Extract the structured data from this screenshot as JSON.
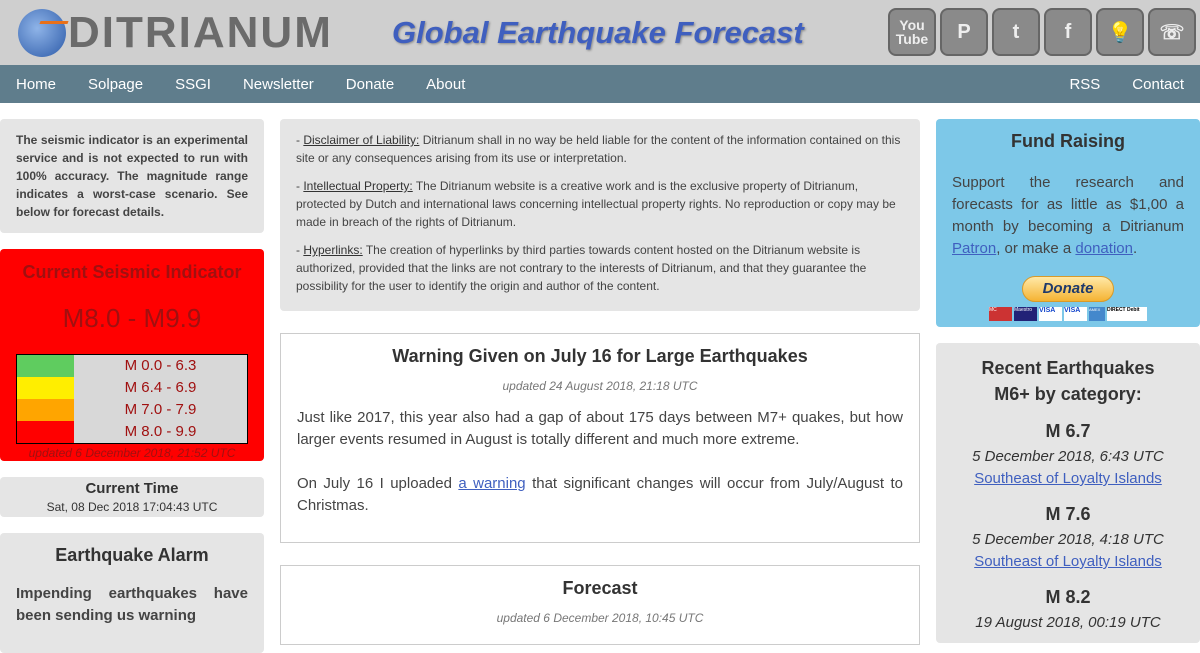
{
  "header": {
    "logo": "DITRIANUM",
    "title": "Global Earthquake Forecast",
    "social": [
      {
        "icon": "youtube-icon",
        "text": "You Tube"
      },
      {
        "icon": "patreon-icon",
        "text": "P"
      },
      {
        "icon": "twitter-icon",
        "text": "t"
      },
      {
        "icon": "facebook-icon",
        "text": "f"
      },
      {
        "icon": "lightbulb-icon",
        "text": "💡"
      },
      {
        "icon": "satellite-icon",
        "text": "☏"
      }
    ]
  },
  "nav": {
    "left": [
      "Home",
      "Solpage",
      "SSGI",
      "Newsletter",
      "Donate",
      "About"
    ],
    "right": [
      "RSS",
      "Contact"
    ]
  },
  "left": {
    "notice": "The seismic indicator is an experimental service and is not expected to run with 100% accuracy. The magnitude range indicates a worst-case scenario. See below for forecast details.",
    "indicator": {
      "title": "Current Seismic Indicator",
      "value": "M8.0 - M9.9",
      "bg": "#ff0000",
      "scale": [
        {
          "label": "M 0.0 - 6.3",
          "color": "#5fcc5f"
        },
        {
          "label": "M 6.4 - 6.9",
          "color": "#ffee00"
        },
        {
          "label": "M 7.0 - 7.9",
          "color": "#ffa500"
        },
        {
          "label": "M 8.0 - 9.9",
          "color": "#ff0000"
        }
      ],
      "updated": "updated 6 December 2018, 21:52 UTC"
    },
    "time": {
      "title": "Current Time",
      "value": "Sat, 08 Dec 2018 17:04:43 UTC"
    },
    "alarm": {
      "title": "Earthquake Alarm",
      "text": "Impending earthquakes have been sending us warning"
    }
  },
  "main": {
    "disclaimers": [
      {
        "label": "Disclaimer of Liability:",
        "text": " Ditrianum shall in no way be held liable for the content of the information contained on this site or any consequences arising from its use or interpretation."
      },
      {
        "label": "Intellectual Property:",
        "text": " The Ditrianum website is a creative work and is the exclusive property of Ditrianum, protected by Dutch and international laws concerning intellectual property rights. No reproduction or copy may be made in breach of the rights of Ditrianum."
      },
      {
        "label": "Hyperlinks:",
        "text": " The creation of hyperlinks by third parties towards content hosted on the Ditrianum website is authorized, provided that the links are not contrary to the interests of Ditrianum, and that they guarantee the possibility for the user to identify the origin and author of the content."
      }
    ],
    "article": {
      "title": "Warning Given on July 16 for Large Earthquakes",
      "updated": "updated 24 August 2018, 21:18 UTC",
      "p1": "Just like 2017, this year also had a gap of about 175 days between M7+ quakes, but how larger events resumed in August is totally different and much more extreme.",
      "p2a": "On July 16 I uploaded ",
      "p2link": "a warning",
      "p2b": " that significant changes will occur from July/August to Christmas."
    },
    "forecast": {
      "title": "Forecast",
      "updated": "updated 6 December 2018, 10:45 UTC"
    }
  },
  "right": {
    "fund": {
      "title": "Fund Raising",
      "text1": "Support the research and forecasts for as little as $1,00 a month by becoming a Ditrianum ",
      "patron": "Patron",
      "text2": ", or make a ",
      "donation": "donation",
      "text3": ".",
      "button": "Donate",
      "cards": [
        "MC",
        "Maestro",
        "VISA",
        "VISA",
        "AMEX",
        "DIRECT Debit"
      ]
    },
    "recent": {
      "title": "Recent Earthquakes M6+ by category:",
      "items": [
        {
          "mag": "M 6.7",
          "date": "5 December 2018, 6:43 UTC",
          "place": "Southeast of Loyalty Islands"
        },
        {
          "mag": "M 7.6",
          "date": "5 December 2018, 4:18 UTC",
          "place": "Southeast of Loyalty Islands"
        },
        {
          "mag": "M 8.2",
          "date": "19 August 2018, 00:19 UTC"
        }
      ]
    }
  }
}
